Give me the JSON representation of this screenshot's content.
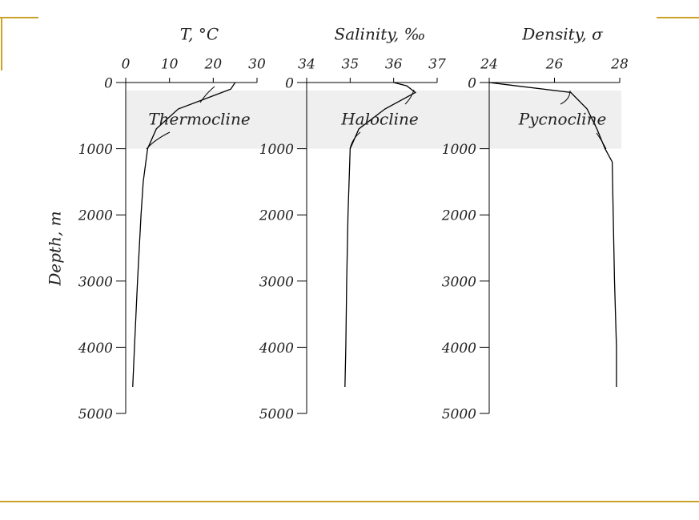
{
  "chart_data": [
    {
      "type": "line",
      "title": "T, °C",
      "ylabel": "Depth, m",
      "annotation": "Thermocline",
      "xlim": [
        0,
        30
      ],
      "xticks": [
        0,
        10,
        20,
        30
      ],
      "ylim": [
        0,
        5000
      ],
      "yticks": [
        0,
        1000,
        2000,
        3000,
        4000,
        5000
      ],
      "inverted_y": true,
      "band": [
        120,
        1000
      ],
      "color": "#000",
      "x": [
        25,
        24,
        20,
        12,
        7,
        5,
        4,
        3.5,
        2.7,
        2,
        1.6
      ],
      "y": [
        0,
        100,
        200,
        400,
        700,
        1000,
        1500,
        2000,
        3000,
        4000,
        4600
      ]
    },
    {
      "type": "line",
      "title": "Salinity, ‰",
      "annotation": "Halocline",
      "xlim": [
        34,
        37
      ],
      "xticks": [
        34,
        35,
        36,
        37
      ],
      "ylim": [
        0,
        5000
      ],
      "yticks": [
        0,
        1000,
        2000,
        3000,
        4000,
        5000
      ],
      "inverted_y": true,
      "band": [
        120,
        1000
      ],
      "color": "#000",
      "x": [
        36,
        36.3,
        36.5,
        35.8,
        35.2,
        35,
        34.95,
        34.92,
        34.9,
        34.88
      ],
      "y": [
        0,
        50,
        150,
        400,
        700,
        1000,
        2000,
        3000,
        4000,
        4600
      ]
    },
    {
      "type": "line",
      "title": "Density, σ",
      "annotation": "Pycnocline",
      "xlim": [
        24,
        28
      ],
      "xticks": [
        24,
        26,
        28
      ],
      "ylim": [
        0,
        5000
      ],
      "yticks": [
        0,
        1000,
        2000,
        3000,
        4000,
        5000
      ],
      "inverted_y": true,
      "band": [
        120,
        1000
      ],
      "color": "#000",
      "x": [
        24,
        26.5,
        27,
        27.3,
        27.55,
        27.77,
        27.8,
        27.84,
        27.9,
        27.9
      ],
      "y": [
        0,
        150,
        400,
        700,
        1000,
        1200,
        2000,
        3000,
        4000,
        4600
      ]
    }
  ]
}
